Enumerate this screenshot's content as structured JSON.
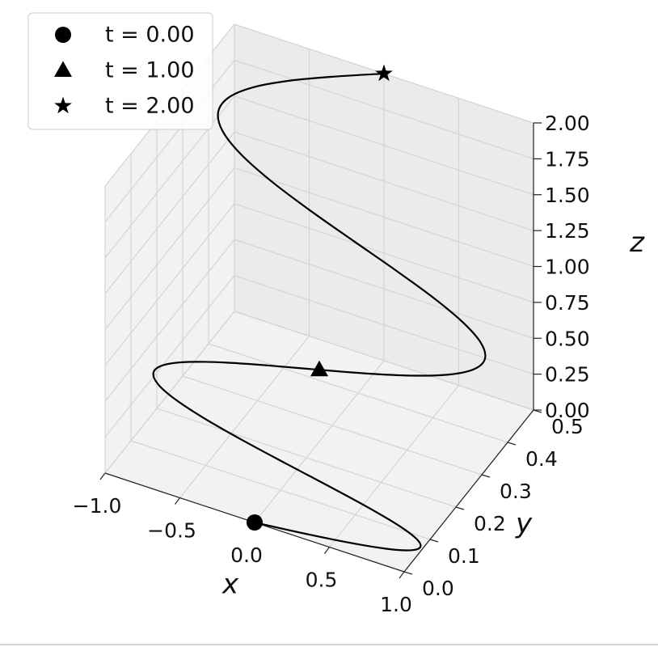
{
  "chart_data": {
    "type": "line3d",
    "xlabel": "x",
    "ylabel": "y",
    "zlabel": "z",
    "xlim": [
      -1,
      1
    ],
    "ylim": [
      0,
      0.5
    ],
    "zlim": [
      0,
      2
    ],
    "xticks": [
      {
        "value": -1,
        "label": "−1.0"
      },
      {
        "value": -0.5,
        "label": "−0.5"
      },
      {
        "value": 0,
        "label": "0.0"
      },
      {
        "value": 0.5,
        "label": "0.5"
      },
      {
        "value": 1,
        "label": "1.0"
      }
    ],
    "yticks": [
      {
        "value": 0,
        "label": "0.0"
      },
      {
        "value": 0.1,
        "label": "0.1"
      },
      {
        "value": 0.2,
        "label": "0.2"
      },
      {
        "value": 0.3,
        "label": "0.3"
      },
      {
        "value": 0.4,
        "label": "0.4"
      },
      {
        "value": 0.5,
        "label": "0.5"
      }
    ],
    "zticks": [
      {
        "value": 0,
        "label": "0.00"
      },
      {
        "value": 0.25,
        "label": "0.25"
      },
      {
        "value": 0.5,
        "label": "0.50"
      },
      {
        "value": 0.75,
        "label": "0.75"
      },
      {
        "value": 1,
        "label": "1.00"
      },
      {
        "value": 1.25,
        "label": "1.25"
      },
      {
        "value": 1.5,
        "label": "1.50"
      },
      {
        "value": 1.75,
        "label": "1.75"
      },
      {
        "value": 2,
        "label": "2.00"
      }
    ],
    "grid": true,
    "legend": "upper left",
    "curve": {
      "color": "#000000",
      "x": [
        0,
        0.309,
        0.588,
        0.809,
        0.951,
        1,
        0.951,
        0.809,
        0.588,
        0.309,
        0,
        -0.309,
        -0.588,
        -0.809,
        -0.951,
        -1,
        -0.951,
        -0.809,
        -0.588,
        -0.309,
        0,
        0.309,
        0.588,
        0.809,
        0.951,
        1,
        0.951,
        0.809,
        0.588,
        0.309,
        0,
        -0.309,
        -0.588,
        -0.809,
        -0.951,
        -1,
        -0.951,
        -0.809,
        -0.588,
        -0.309,
        0
      ],
      "y": [
        0,
        0.0125,
        0.025,
        0.0375,
        0.05,
        0.0625,
        0.075,
        0.0875,
        0.1,
        0.1125,
        0.125,
        0.1375,
        0.15,
        0.1625,
        0.175,
        0.1875,
        0.2,
        0.2125,
        0.225,
        0.2375,
        0.25,
        0.2625,
        0.275,
        0.2875,
        0.3,
        0.3125,
        0.325,
        0.3375,
        0.35,
        0.3625,
        0.375,
        0.3875,
        0.4,
        0.4125,
        0.425,
        0.4375,
        0.45,
        0.4625,
        0.475,
        0.4875,
        0.5
      ],
      "z": [
        0,
        0.00125,
        0.005,
        0.01125,
        0.02,
        0.03125,
        0.045,
        0.06125,
        0.08,
        0.10125,
        0.125,
        0.15125,
        0.18,
        0.21125,
        0.245,
        0.28125,
        0.32,
        0.36125,
        0.405,
        0.45125,
        0.5,
        0.55125,
        0.605,
        0.66125,
        0.72,
        0.78125,
        0.845,
        0.91125,
        0.98,
        1.05125,
        1.125,
        1.20125,
        1.28,
        1.36125,
        1.445,
        1.53125,
        1.62,
        1.71125,
        1.805,
        1.90125,
        2
      ]
    },
    "points": [
      {
        "name": "t = 0.00",
        "marker": "circle",
        "color": "#000000",
        "x": 0,
        "y": 0,
        "z": 0
      },
      {
        "name": "t = 1.00",
        "marker": "triangle",
        "color": "#000000",
        "x": 0,
        "y": 0.25,
        "z": 0.5
      },
      {
        "name": "t = 2.00",
        "marker": "star",
        "color": "#000000",
        "x": 0,
        "y": 0.5,
        "z": 2
      }
    ]
  }
}
